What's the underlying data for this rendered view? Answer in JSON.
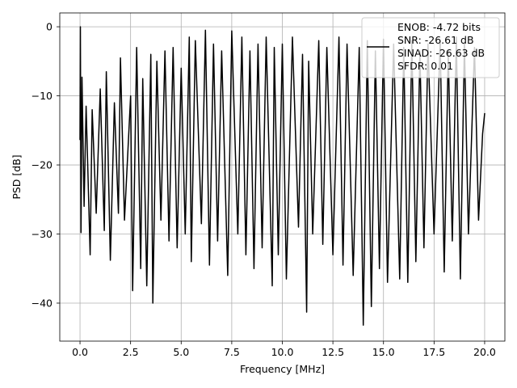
{
  "chart_data": {
    "type": "line",
    "title": "",
    "xlabel": "Frequency [MHz]",
    "ylabel": "PSD [dB]",
    "xlim": [
      -1.0,
      21.0
    ],
    "ylim": [
      -45.5,
      2.0
    ],
    "x_ticks": [
      0.0,
      2.5,
      5.0,
      7.5,
      10.0,
      12.5,
      15.0,
      17.5,
      20.0
    ],
    "x_tick_labels": [
      "0.0",
      "2.5",
      "5.0",
      "7.5",
      "10.0",
      "12.5",
      "15.0",
      "17.5",
      "20.0"
    ],
    "y_ticks": [
      0,
      -10,
      -20,
      -30,
      -40
    ],
    "y_tick_labels": [
      "0",
      "−10",
      "−20",
      "−30",
      "−40"
    ],
    "grid": true,
    "legend_position": "top-right",
    "legend_lines": [
      "ENOB: -4.72 bits",
      "SNR: -26.61 dB",
      "SINAD: -26.63 dB",
      "SFDR: 0.01"
    ],
    "line_color": "#000000",
    "series": [
      {
        "x": [
          0.0,
          0.02,
          0.05,
          0.1,
          0.2,
          0.3,
          0.5,
          0.6,
          0.8,
          1.0,
          1.2,
          1.3,
          1.5,
          1.7,
          1.9,
          2.0,
          2.2,
          2.5,
          2.6,
          2.8,
          3.0,
          3.1,
          3.3,
          3.5,
          3.6,
          3.8,
          4.0,
          4.2,
          4.4,
          4.6,
          4.8,
          5.0,
          5.2,
          5.4,
          5.5,
          5.7,
          6.0,
          6.2,
          6.4,
          6.6,
          6.8,
          7.0,
          7.3,
          7.5,
          7.8,
          8.0,
          8.2,
          8.4,
          8.6,
          8.8,
          9.0,
          9.2,
          9.5,
          9.6,
          9.8,
          10.0,
          10.2,
          10.5,
          10.8,
          11.0,
          11.2,
          11.3,
          11.5,
          11.8,
          12.0,
          12.2,
          12.5,
          12.8,
          13.0,
          13.2,
          13.5,
          13.8,
          14.0,
          14.2,
          14.4,
          14.6,
          14.8,
          15.0,
          15.2,
          15.5,
          15.8,
          16.0,
          16.2,
          16.4,
          16.6,
          16.8,
          17.0,
          17.2,
          17.5,
          17.8,
          18.0,
          18.2,
          18.4,
          18.6,
          18.8,
          19.0,
          19.2,
          19.5,
          19.7,
          19.9,
          20.0
        ],
        "y": [
          -16.4,
          0.0,
          -29.8,
          -7.3,
          -26.0,
          -11.5,
          -33.0,
          -12.0,
          -27.0,
          -9.0,
          -29.5,
          -6.5,
          -33.8,
          -11.0,
          -27.0,
          -4.5,
          -28.0,
          -10.0,
          -38.2,
          -3.0,
          -35.0,
          -7.5,
          -37.5,
          -4.0,
          -40.0,
          -5.0,
          -28.0,
          -3.5,
          -31.0,
          -3.0,
          -32.0,
          -6.0,
          -30.0,
          -1.5,
          -34.0,
          -2.0,
          -28.5,
          -0.5,
          -34.5,
          -2.5,
          -31.0,
          -3.5,
          -36.0,
          -0.6,
          -30.0,
          -1.5,
          -33.0,
          -3.5,
          -35.0,
          -2.5,
          -32.0,
          -1.5,
          -37.5,
          -3.0,
          -33.0,
          -2.5,
          -36.5,
          -1.5,
          -29.0,
          -4.0,
          -41.3,
          -5.0,
          -30.0,
          -2.0,
          -31.5,
          -3.0,
          -33.0,
          -1.5,
          -34.5,
          -2.5,
          -36.0,
          -3.0,
          -43.2,
          -2.0,
          -40.5,
          -3.5,
          -35.0,
          -1.8,
          -37.0,
          -2.5,
          -36.5,
          -3.0,
          -37.0,
          -2.0,
          -34.0,
          -3.5,
          -32.0,
          -2.5,
          -30.0,
          -2.0,
          -35.5,
          -3.5,
          -31.0,
          -1.5,
          -36.5,
          -2.5,
          -30.0,
          -3.0,
          -28.0,
          -15.5,
          -12.5
        ]
      }
    ]
  }
}
